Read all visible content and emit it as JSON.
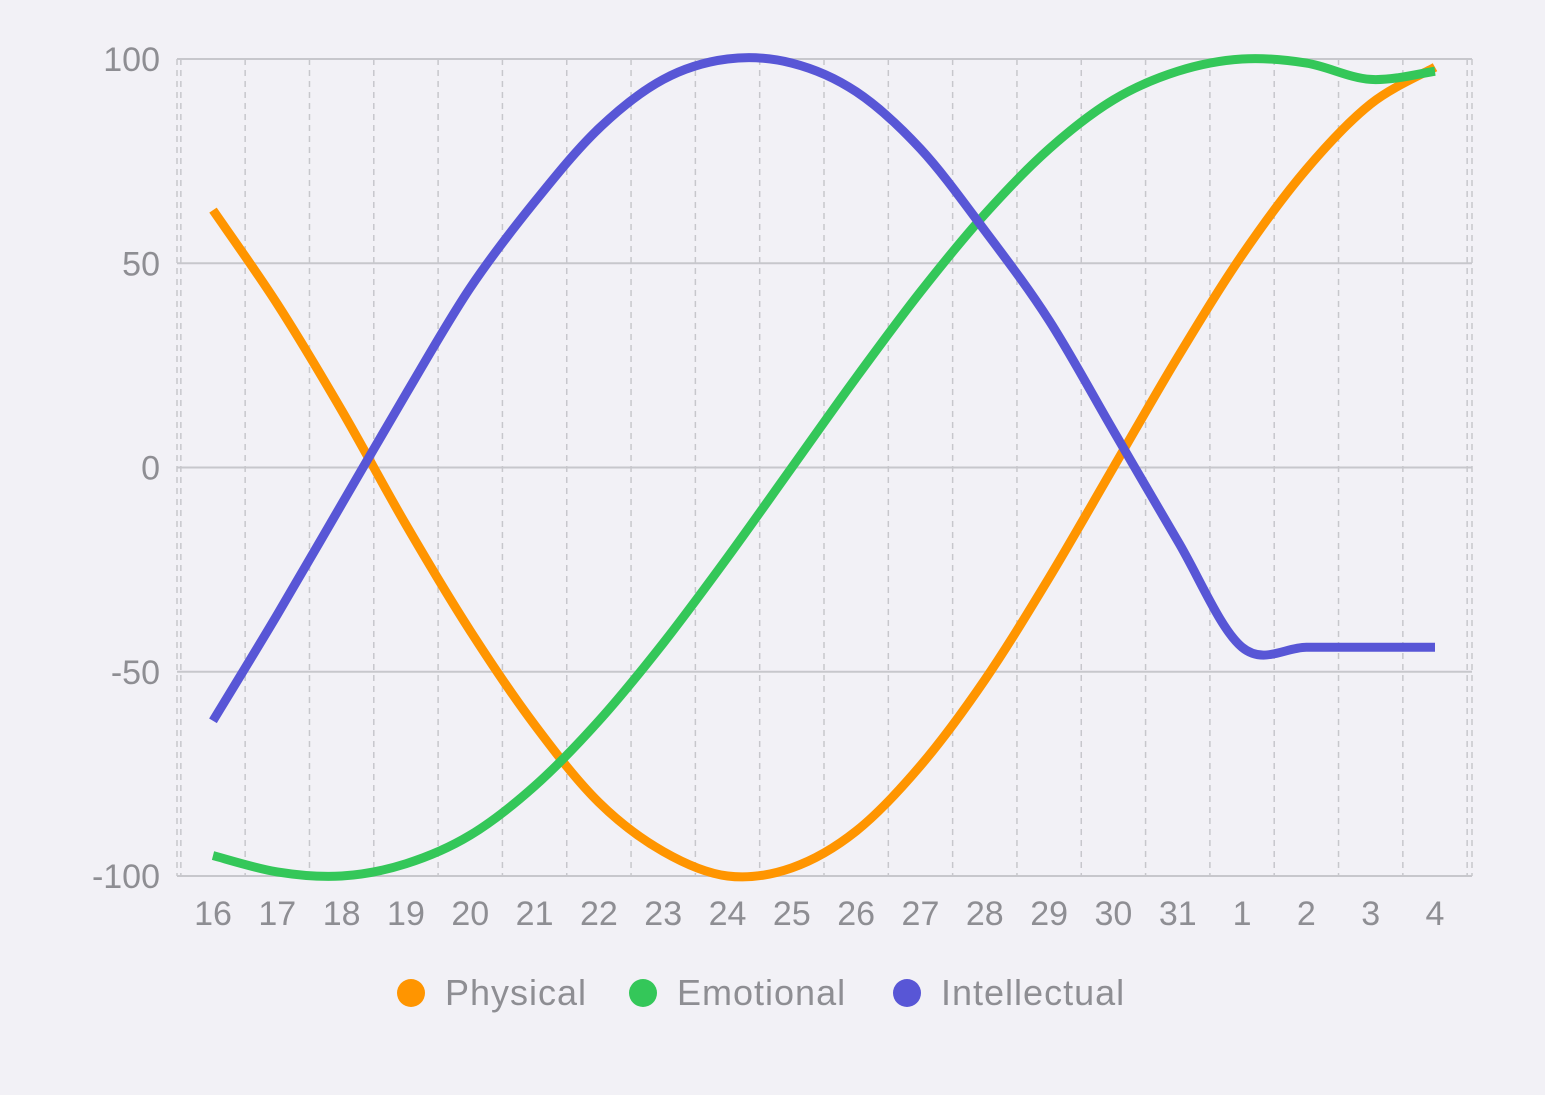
{
  "chart_data": {
    "type": "line",
    "x": [
      "16",
      "17",
      "18",
      "19",
      "20",
      "21",
      "22",
      "23",
      "24",
      "25",
      "26",
      "27",
      "28",
      "29",
      "30",
      "31",
      "1",
      "2",
      "3",
      "4"
    ],
    "ylim": [
      -100,
      100
    ],
    "yticks": [
      100,
      50,
      0,
      -50,
      -100
    ],
    "grid": {
      "horizontal": true,
      "vertical": true,
      "vertical_style": "dashed"
    },
    "legend": {
      "position": "bottom-center"
    },
    "series": [
      {
        "name": "Physical",
        "color": "#ff9500",
        "values": [
          63,
          40,
          14,
          -14,
          -40,
          -63,
          -82,
          -94,
          -100,
          -98,
          -89,
          -73,
          -52,
          -27,
          0,
          27,
          52,
          73,
          89,
          98
        ]
      },
      {
        "name": "Emotional",
        "color": "#34c759",
        "values": [
          -95,
          -99,
          -100,
          -97,
          -90,
          -78,
          -62,
          -43,
          -22,
          0,
          22,
          43,
          62,
          78,
          90,
          97,
          100,
          99,
          95,
          97
        ]
      },
      {
        "name": "Intellectual",
        "color": "#5856d6",
        "values": [
          -62,
          -36,
          -9,
          18,
          44,
          65,
          83,
          95,
          100,
          99,
          92,
          78,
          58,
          36,
          9,
          -18,
          -44,
          -44,
          -44,
          -44
        ]
      }
    ]
  }
}
